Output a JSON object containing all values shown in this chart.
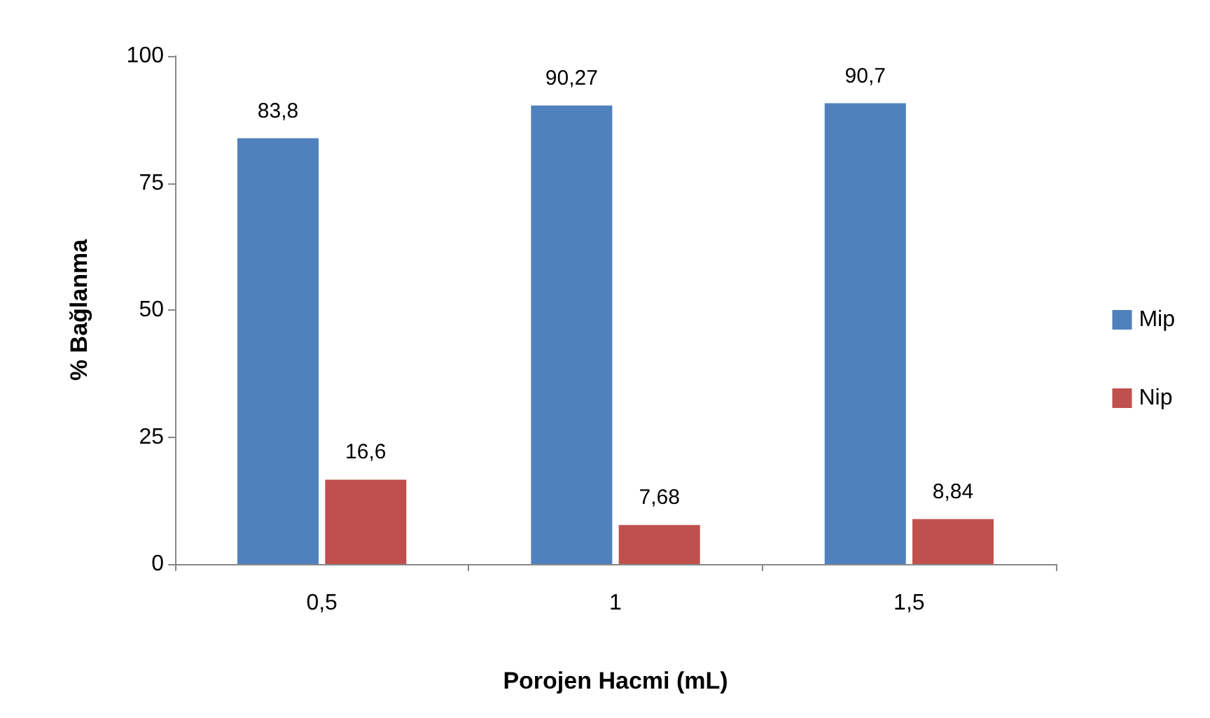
{
  "chart_data": {
    "type": "bar",
    "xlabel": "Porojen Hacmi (mL)",
    "ylabel": "% Bağlanma",
    "categories": [
      "0,5",
      "1",
      "1,5"
    ],
    "series": [
      {
        "name": "Mip",
        "color": "#4f81bd",
        "values": [
          83.8,
          90.27,
          90.7
        ],
        "value_labels": [
          "83,8",
          "90,27",
          "90,7"
        ]
      },
      {
        "name": "Nip",
        "color": "#c0504d",
        "values": [
          16.6,
          7.68,
          8.84
        ],
        "value_labels": [
          "16,6",
          "7,68",
          "8,84"
        ]
      }
    ],
    "ylim": [
      0,
      100
    ],
    "yticks": [
      0,
      25,
      50,
      75,
      100
    ],
    "grid": false,
    "legend": "right"
  }
}
